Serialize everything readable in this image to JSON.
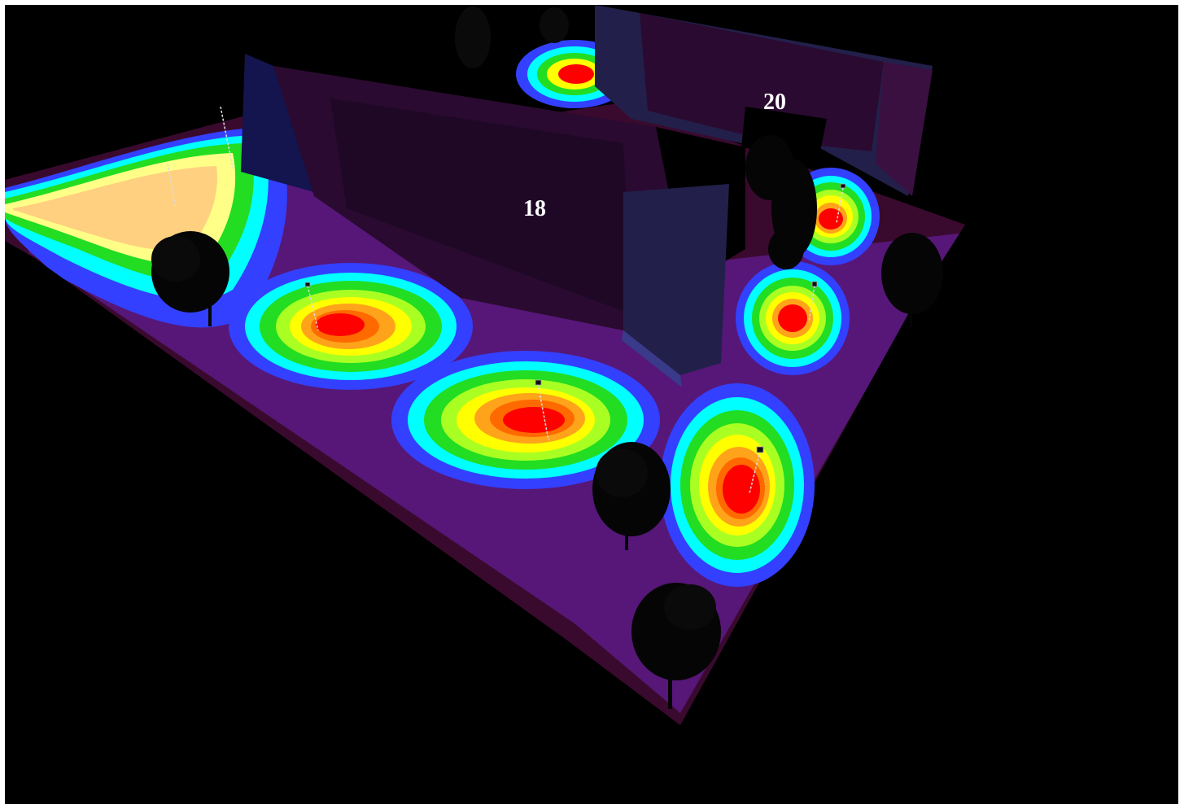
{
  "scene": {
    "kind": "3d lighting illuminance false-color render",
    "background": "#000000",
    "frame_color": "#ffffff"
  },
  "buildings": [
    {
      "label": "18"
    },
    {
      "label": "20"
    }
  ],
  "palette": {
    "high": "#ff0000",
    "orange_red": "#ff6a00",
    "orange": "#ffa31a",
    "yellow": "#ffff00",
    "lime": "#aaff22",
    "green": "#22dd22",
    "cyan": "#00ffff",
    "light_blue": "#5f9fff",
    "blue": "#3340ff",
    "violet": "#7a2cff",
    "purple": "#5c1a85",
    "dark_purple": "#33104a",
    "navy": "#0a0a55",
    "maroon": "#3a0a2e"
  }
}
